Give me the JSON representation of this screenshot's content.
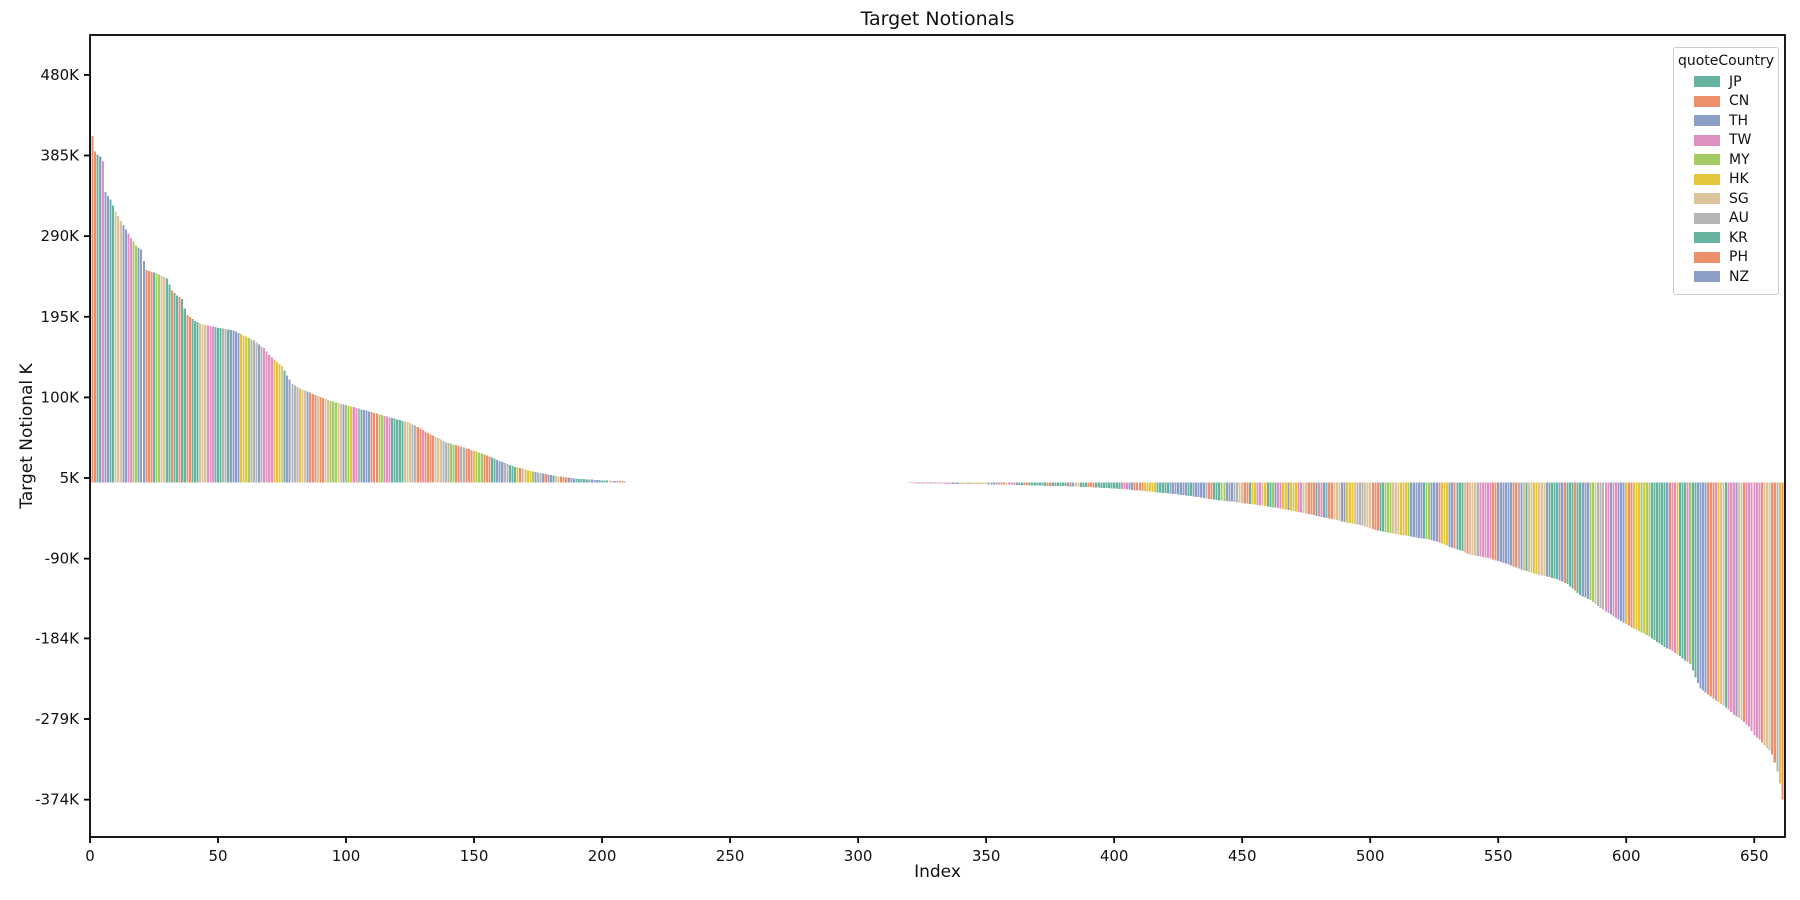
{
  "chart_data": {
    "type": "bar",
    "title": "Target Notionals",
    "xlabel": "Index",
    "ylabel": "Target Notional K",
    "n_bars": 662,
    "xlim": [
      0,
      662
    ],
    "ylim": [
      -418,
      527
    ],
    "grid": false,
    "x_ticks": [
      0,
      50,
      100,
      150,
      200,
      250,
      300,
      350,
      400,
      450,
      500,
      550,
      600,
      650
    ],
    "y_ticks": [
      {
        "label": "480K",
        "value": 480
      },
      {
        "label": "385K",
        "value": 385
      },
      {
        "label": "290K",
        "value": 290
      },
      {
        "label": "195K",
        "value": 195
      },
      {
        "label": "100K",
        "value": 100
      },
      {
        "label": "5K",
        "value": 5
      },
      {
        "label": "-90K",
        "value": -90
      },
      {
        "label": "-184K",
        "value": -184
      },
      {
        "label": "-279K",
        "value": -279
      },
      {
        "label": "-374K",
        "value": -374
      }
    ],
    "legend": {
      "title": "quoteCountry",
      "position": "upper right",
      "entries": [
        {
          "label": "JP",
          "color": "#66b3a0"
        },
        {
          "label": "CN",
          "color": "#eb8f6c"
        },
        {
          "label": "TH",
          "color": "#8d9fc7"
        },
        {
          "label": "TW",
          "color": "#df92c2"
        },
        {
          "label": "MY",
          "color": "#a5cb64"
        },
        {
          "label": "HK",
          "color": "#e3c63c"
        },
        {
          "label": "SG",
          "color": "#dbc49c"
        },
        {
          "label": "AU",
          "color": "#b5b5b5"
        },
        {
          "label": "KR",
          "color": "#66b3a0"
        },
        {
          "label": "PH",
          "color": "#eb8f6c"
        },
        {
          "label": "NZ",
          "color": "#8d9fc7"
        }
      ]
    },
    "lead_colors": [
      "JP",
      "CN",
      "CN",
      "KR",
      "TH",
      "TW"
    ],
    "tail_colors": [
      "HK",
      "CN"
    ],
    "envelope_units": "K, sampled descending-sorted values; bars linearly interpolated between control points [index, value]",
    "envelope": [
      [
        0,
        481
      ],
      [
        1,
        408
      ],
      [
        2,
        390
      ],
      [
        3,
        386
      ],
      [
        4,
        384
      ],
      [
        5,
        378
      ],
      [
        6,
        342
      ],
      [
        8,
        333
      ],
      [
        10,
        319
      ],
      [
        12,
        308
      ],
      [
        14,
        298
      ],
      [
        16,
        288
      ],
      [
        18,
        279
      ],
      [
        20,
        274
      ],
      [
        21,
        261
      ],
      [
        22,
        250
      ],
      [
        27,
        245
      ],
      [
        30,
        240
      ],
      [
        32,
        226
      ],
      [
        34,
        220
      ],
      [
        36,
        216
      ],
      [
        37,
        205
      ],
      [
        38,
        197
      ],
      [
        41,
        190
      ],
      [
        44,
        186
      ],
      [
        50,
        182
      ],
      [
        56,
        179
      ],
      [
        60,
        173
      ],
      [
        64,
        167
      ],
      [
        68,
        158
      ],
      [
        70,
        150
      ],
      [
        72,
        144
      ],
      [
        75,
        137
      ],
      [
        77,
        126
      ],
      [
        79,
        116
      ],
      [
        81,
        112
      ],
      [
        84,
        108
      ],
      [
        88,
        103
      ],
      [
        92,
        98
      ],
      [
        96,
        94
      ],
      [
        101,
        90
      ],
      [
        106,
        86
      ],
      [
        113,
        80
      ],
      [
        120,
        74
      ],
      [
        125,
        70
      ],
      [
        128,
        65
      ],
      [
        132,
        58
      ],
      [
        136,
        52
      ],
      [
        139,
        47
      ],
      [
        143,
        44
      ],
      [
        147,
        40
      ],
      [
        152,
        35
      ],
      [
        157,
        29
      ],
      [
        161,
        24
      ],
      [
        165,
        19
      ],
      [
        169,
        16
      ],
      [
        172,
        13
      ],
      [
        178,
        10
      ],
      [
        183,
        7
      ],
      [
        188,
        5
      ],
      [
        191,
        4
      ],
      [
        196,
        3
      ],
      [
        202,
        2
      ],
      [
        208,
        1.2
      ],
      [
        212,
        0.5
      ],
      [
        225,
        0.1
      ],
      [
        305,
        -0.1
      ],
      [
        318,
        -0.6
      ],
      [
        322,
        -1.2
      ],
      [
        330,
        -1.6
      ],
      [
        345,
        -2.1
      ],
      [
        355,
        -2.6
      ],
      [
        364,
        -3.2
      ],
      [
        371,
        -4
      ],
      [
        380,
        -4.6
      ],
      [
        386,
        -5.2
      ],
      [
        392,
        -6
      ],
      [
        398,
        -7
      ],
      [
        404,
        -8
      ],
      [
        408,
        -9.5
      ],
      [
        414,
        -11
      ],
      [
        419,
        -12.5
      ],
      [
        424,
        -14
      ],
      [
        429,
        -16
      ],
      [
        434,
        -18
      ],
      [
        440,
        -21
      ],
      [
        445,
        -22.5
      ],
      [
        449,
        -24
      ],
      [
        454,
        -26
      ],
      [
        459,
        -28
      ],
      [
        465,
        -31
      ],
      [
        472,
        -35
      ],
      [
        477,
        -38
      ],
      [
        481,
        -41
      ],
      [
        485,
        -43.5
      ],
      [
        489,
        -46
      ],
      [
        494,
        -49
      ],
      [
        498,
        -52
      ],
      [
        503,
        -57
      ],
      [
        508,
        -60
      ],
      [
        512,
        -62
      ],
      [
        518,
        -65
      ],
      [
        524,
        -68
      ],
      [
        528,
        -72
      ],
      [
        531,
        -76
      ],
      [
        535,
        -80
      ],
      [
        539,
        -85
      ],
      [
        546,
        -89
      ],
      [
        551,
        -94
      ],
      [
        555,
        -98
      ],
      [
        560,
        -104
      ],
      [
        566,
        -109
      ],
      [
        573,
        -114
      ],
      [
        577,
        -120
      ],
      [
        582,
        -133
      ],
      [
        586,
        -139
      ],
      [
        590,
        -148
      ],
      [
        594,
        -156
      ],
      [
        597,
        -162
      ],
      [
        600,
        -167
      ],
      [
        602,
        -171
      ],
      [
        605,
        -175
      ],
      [
        609,
        -182
      ],
      [
        612,
        -188
      ],
      [
        615,
        -194
      ],
      [
        618,
        -199
      ],
      [
        621,
        -205
      ],
      [
        623,
        -210
      ],
      [
        625,
        -214
      ],
      [
        627,
        -230
      ],
      [
        629,
        -243
      ],
      [
        632,
        -250
      ],
      [
        634,
        -255
      ],
      [
        637,
        -261
      ],
      [
        640,
        -268
      ],
      [
        642,
        -274
      ],
      [
        645,
        -280
      ],
      [
        648,
        -288
      ],
      [
        650,
        -298
      ],
      [
        652,
        -303
      ],
      [
        654,
        -310
      ],
      [
        656,
        -316
      ],
      [
        657,
        -321
      ],
      [
        658,
        -330
      ],
      [
        659,
        -341
      ],
      [
        660,
        -355
      ],
      [
        661,
        -374
      ]
    ]
  }
}
